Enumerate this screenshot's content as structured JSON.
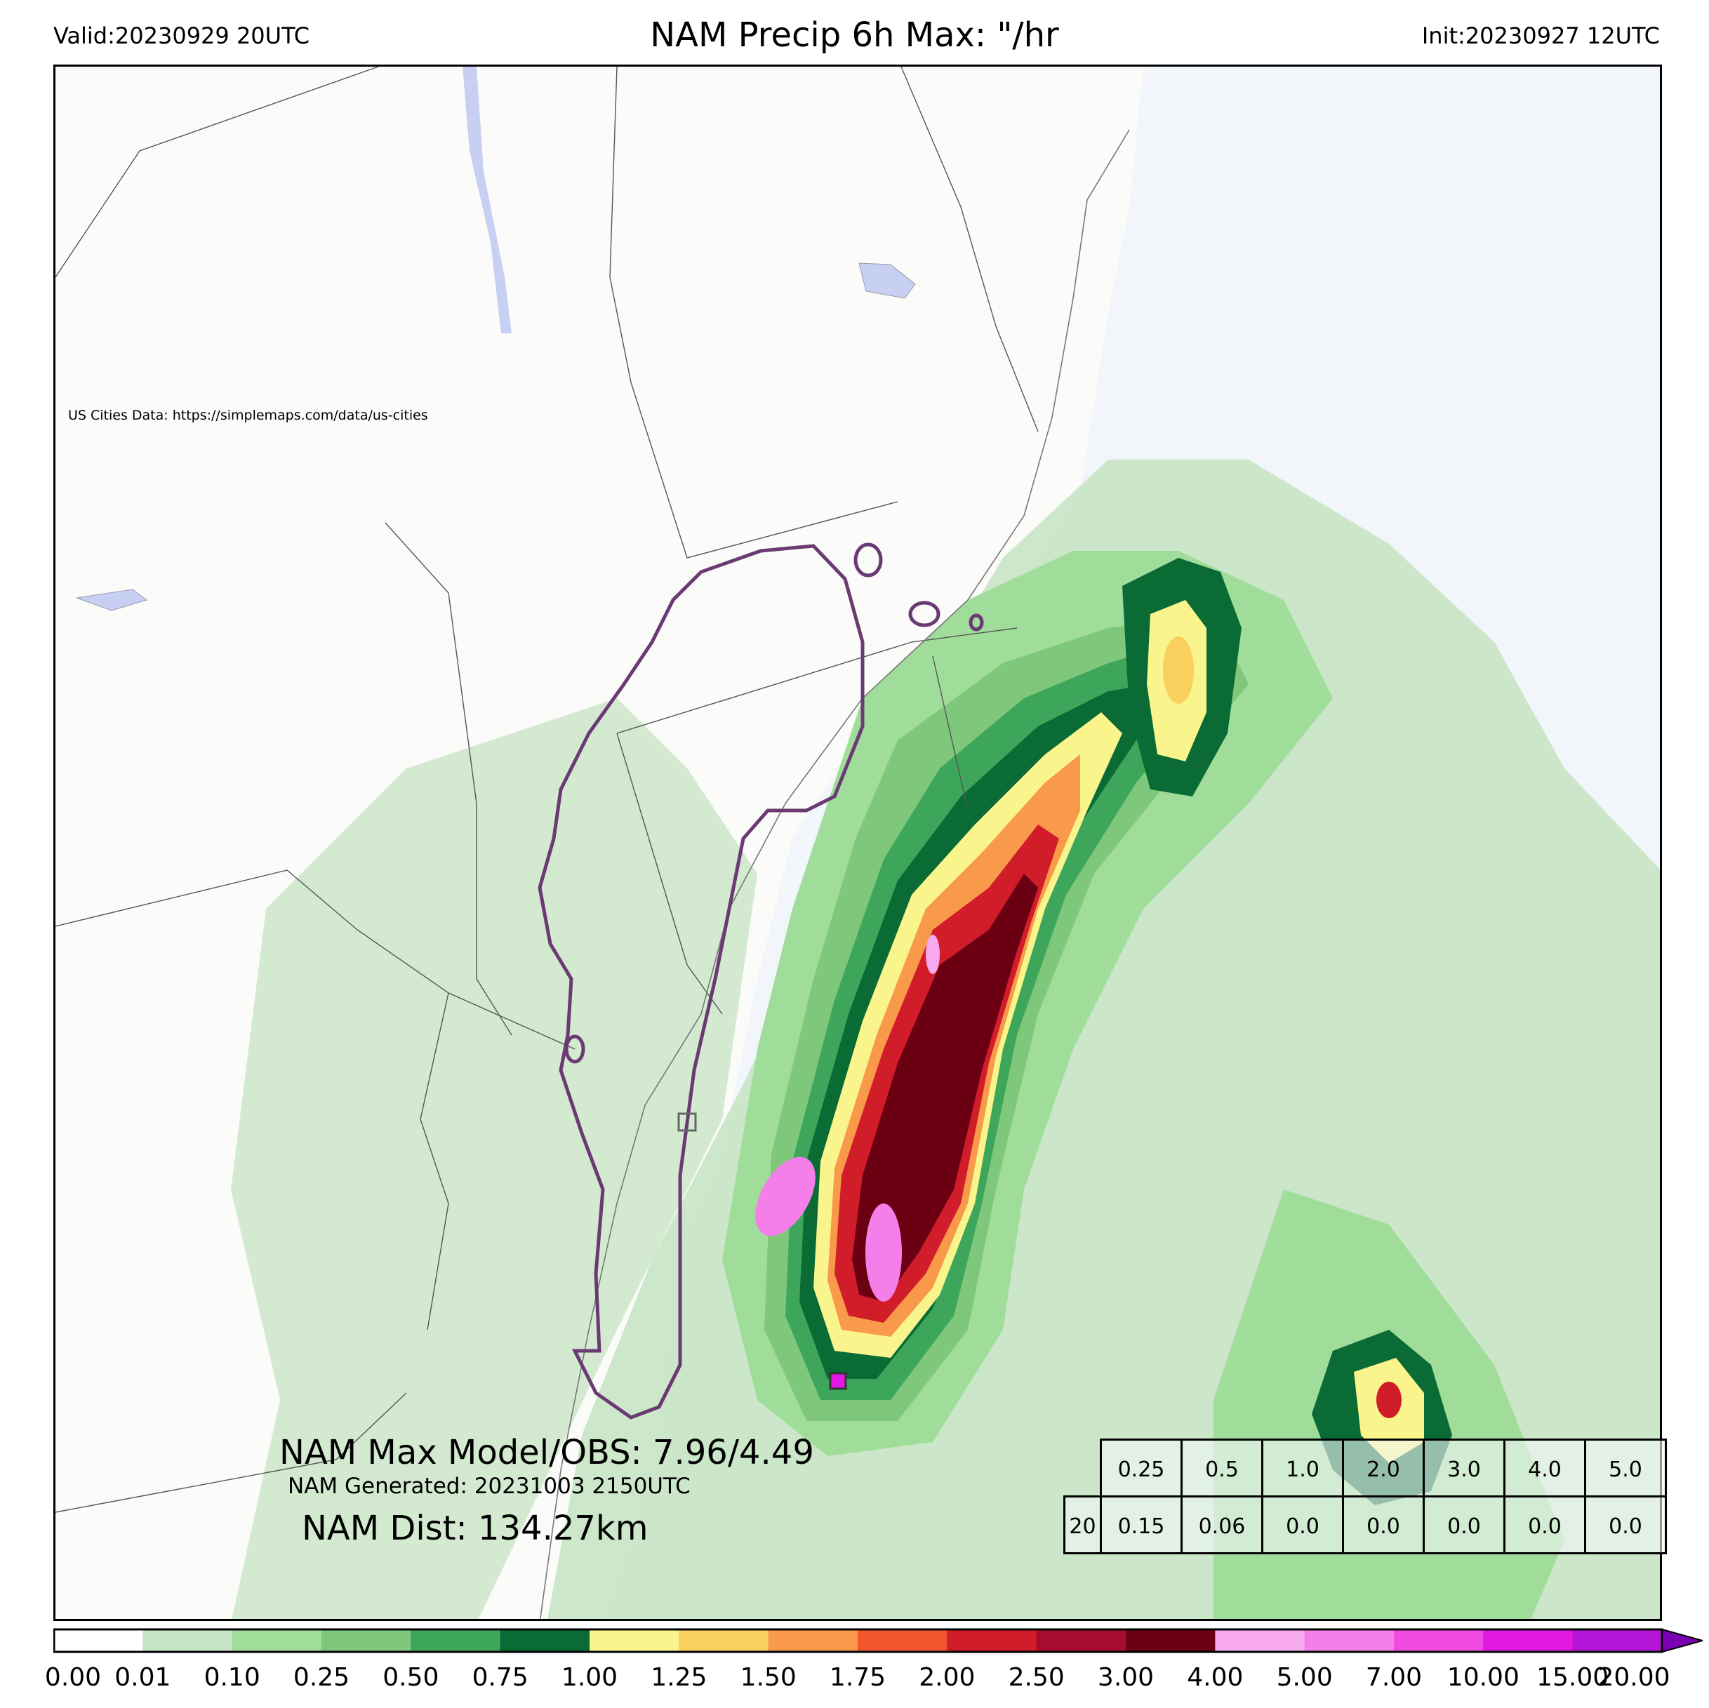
{
  "header": {
    "valid": "Valid:20230929 20UTC",
    "title": "NAM Precip 6h Max: \"/hr",
    "init": "Init:20230927 12UTC"
  },
  "map": {
    "credit": "US Cities Data: https://simplemaps.com/data/us-cities",
    "colors": {
      "ocean": "#f2f5fa",
      "land": "#fbfbf9",
      "boundary": "#555555",
      "contour": "#6b3a73",
      "water": "#c7cff2"
    }
  },
  "stats": {
    "max_line": "NAM Max Model/OBS: 7.96/4.49",
    "generated": "NAM Generated: 20231003 2150UTC",
    "distance": "NAM Dist: 134.27km"
  },
  "threshold_table": {
    "thresholds": [
      "0.25",
      "0.5",
      "1.0",
      "2.0",
      "3.0",
      "4.0",
      "5.0"
    ],
    "row2": [
      "20",
      "0.15",
      "0.06",
      "0.0",
      "0.0",
      "0.0",
      "0.0",
      "0.0"
    ]
  },
  "colorbar": {
    "ticks": [
      "0.00",
      "0.01",
      "0.10",
      "0.25",
      "0.50",
      "0.75",
      "1.00",
      "1.25",
      "1.50",
      "1.75",
      "2.00",
      "2.50",
      "3.00",
      "4.00",
      "5.00",
      "7.00",
      "10.00",
      "15.00",
      "20.00"
    ],
    "colors": [
      "#ffffff",
      "#c6e4c3",
      "#a1dd9a",
      "#7ec77b",
      "#3ea65b",
      "#0a6b35",
      "#f9f58c",
      "#f9cf5d",
      "#f89a49",
      "#f2542e",
      "#d11c2a",
      "#a50c30",
      "#6b0013",
      "#f7a9f0",
      "#f47fe8",
      "#f04ae0",
      "#e018e0",
      "#b414d6",
      "#8a0ac8"
    ],
    "extend_color": "#7a00b4",
    "range": [
      0.0,
      20.0
    ]
  }
}
